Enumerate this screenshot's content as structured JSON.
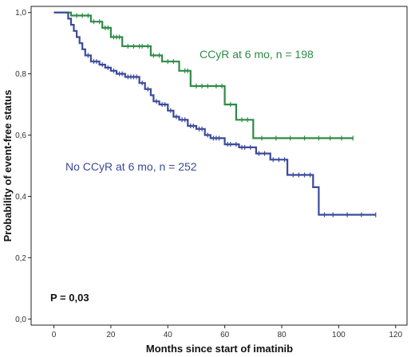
{
  "chart_data": {
    "type": "line",
    "xlabel": "Months since start of imatinib",
    "ylabel": "Probability of event-free status",
    "xlim": [
      -8,
      124
    ],
    "ylim": [
      -0.02,
      1.02
    ],
    "x_ticks": [
      "0",
      "20",
      "40",
      "60",
      "80",
      "100",
      "120"
    ],
    "y_ticks": [
      "0,0",
      "0,2",
      "0,4",
      "0,6",
      "0,8",
      "1,0"
    ],
    "annotation": "P = 0,03",
    "series": [
      {
        "name": "CCyR at 6 mo, n = 198",
        "color": "#2e8b46",
        "steps": [
          [
            0,
            1.0
          ],
          [
            6,
            1.0
          ],
          [
            6,
            0.99
          ],
          [
            13,
            0.99
          ],
          [
            13,
            0.97
          ],
          [
            17,
            0.97
          ],
          [
            17,
            0.95
          ],
          [
            20,
            0.95
          ],
          [
            20,
            0.92
          ],
          [
            24,
            0.92
          ],
          [
            24,
            0.89
          ],
          [
            34,
            0.89
          ],
          [
            34,
            0.86
          ],
          [
            38,
            0.86
          ],
          [
            38,
            0.84
          ],
          [
            44,
            0.84
          ],
          [
            44,
            0.81
          ],
          [
            48,
            0.81
          ],
          [
            48,
            0.76
          ],
          [
            60,
            0.76
          ],
          [
            60,
            0.7
          ],
          [
            64,
            0.7
          ],
          [
            64,
            0.65
          ],
          [
            70,
            0.65
          ],
          [
            70,
            0.59
          ],
          [
            105,
            0.59
          ]
        ],
        "censor_x": [
          8,
          10,
          12,
          14,
          16,
          18,
          19,
          21,
          22,
          23,
          26,
          28,
          30,
          31,
          33,
          35,
          37,
          40,
          42,
          46,
          47,
          50,
          52,
          54,
          57,
          59,
          62,
          66,
          68,
          73,
          78,
          83,
          88,
          93,
          97,
          101,
          105
        ]
      },
      {
        "name": "No CCyR at 6 mo, n = 252",
        "color": "#3a4a9a",
        "steps": [
          [
            0,
            1.0
          ],
          [
            5,
            1.0
          ],
          [
            5,
            0.98
          ],
          [
            6,
            0.98
          ],
          [
            6,
            0.96
          ],
          [
            7,
            0.96
          ],
          [
            7,
            0.94
          ],
          [
            8,
            0.94
          ],
          [
            8,
            0.92
          ],
          [
            9,
            0.92
          ],
          [
            9,
            0.9
          ],
          [
            10,
            0.9
          ],
          [
            10,
            0.88
          ],
          [
            11,
            0.88
          ],
          [
            11,
            0.86
          ],
          [
            13,
            0.86
          ],
          [
            13,
            0.84
          ],
          [
            16,
            0.84
          ],
          [
            16,
            0.83
          ],
          [
            18,
            0.83
          ],
          [
            18,
            0.82
          ],
          [
            20,
            0.82
          ],
          [
            20,
            0.81
          ],
          [
            22,
            0.81
          ],
          [
            22,
            0.8
          ],
          [
            25,
            0.8
          ],
          [
            25,
            0.79
          ],
          [
            30,
            0.79
          ],
          [
            30,
            0.77
          ],
          [
            32,
            0.77
          ],
          [
            32,
            0.75
          ],
          [
            34,
            0.75
          ],
          [
            34,
            0.73
          ],
          [
            35,
            0.73
          ],
          [
            35,
            0.71
          ],
          [
            37,
            0.71
          ],
          [
            37,
            0.7
          ],
          [
            40,
            0.7
          ],
          [
            40,
            0.68
          ],
          [
            42,
            0.68
          ],
          [
            42,
            0.66
          ],
          [
            44,
            0.66
          ],
          [
            44,
            0.65
          ],
          [
            47,
            0.65
          ],
          [
            47,
            0.63
          ],
          [
            50,
            0.63
          ],
          [
            50,
            0.62
          ],
          [
            53,
            0.62
          ],
          [
            53,
            0.6
          ],
          [
            55,
            0.6
          ],
          [
            55,
            0.59
          ],
          [
            60,
            0.59
          ],
          [
            60,
            0.57
          ],
          [
            65,
            0.57
          ],
          [
            65,
            0.56
          ],
          [
            71,
            0.56
          ],
          [
            71,
            0.54
          ],
          [
            76,
            0.54
          ],
          [
            76,
            0.52
          ],
          [
            82,
            0.52
          ],
          [
            82,
            0.47
          ],
          [
            91,
            0.47
          ],
          [
            91,
            0.43
          ],
          [
            93,
            0.43
          ],
          [
            93,
            0.34
          ],
          [
            113,
            0.34
          ]
        ],
        "censor_x": [
          12,
          14,
          15,
          17,
          19,
          21,
          23,
          24,
          26,
          27,
          28,
          29,
          31,
          33,
          36,
          38,
          39,
          41,
          43,
          45,
          46,
          48,
          49,
          51,
          52,
          54,
          56,
          57,
          58,
          61,
          62,
          64,
          66,
          67,
          69,
          72,
          74,
          77,
          79,
          81,
          84,
          86,
          88,
          90,
          95,
          98,
          103,
          108,
          113
        ]
      }
    ]
  }
}
